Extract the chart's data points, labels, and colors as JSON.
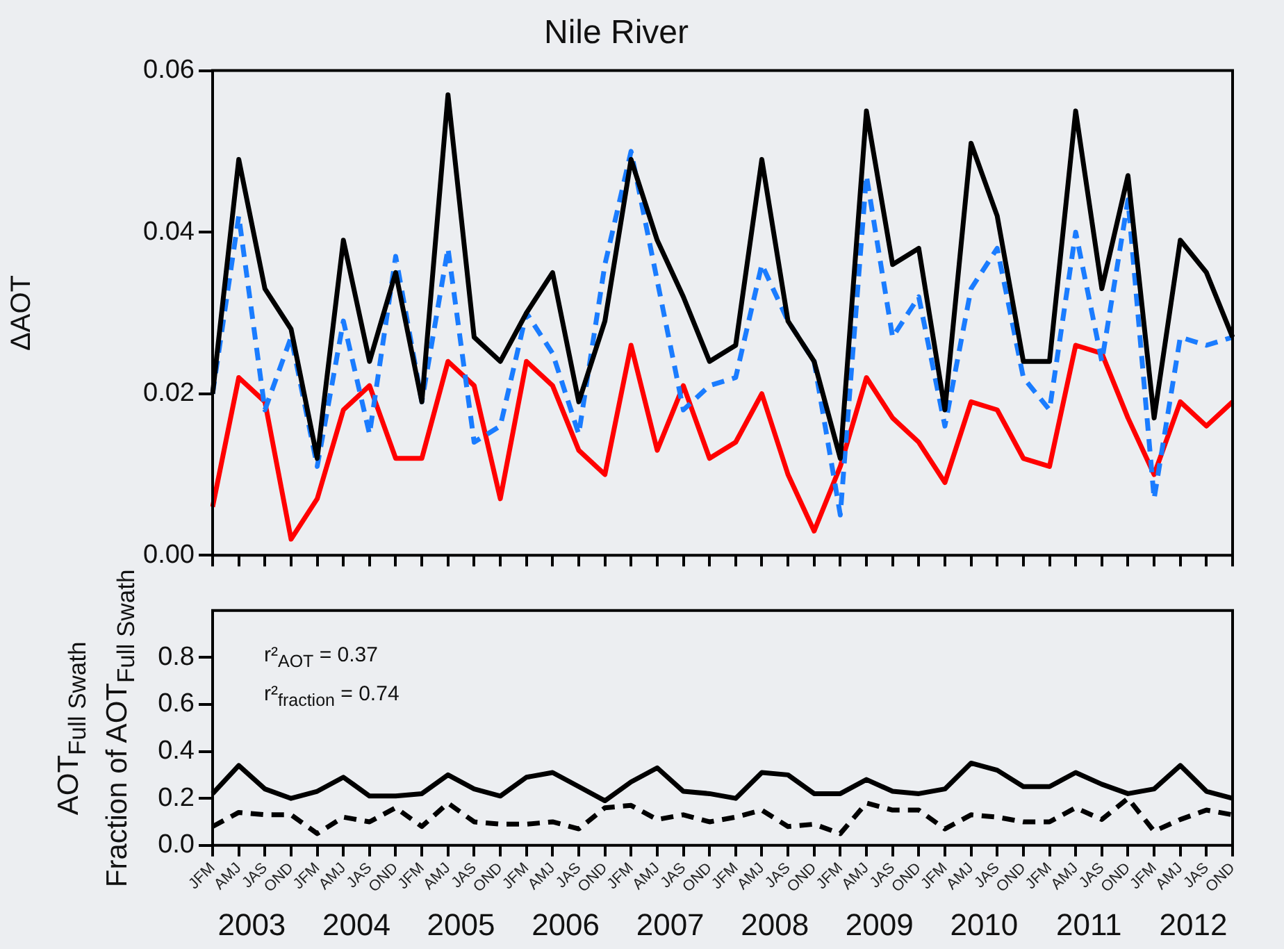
{
  "chart_data": [
    {
      "type": "line",
      "title": "Nile River",
      "ylabel": "ΔAOT",
      "categories": [
        null,
        null,
        null,
        null,
        null,
        null,
        null,
        null,
        null,
        null,
        null,
        null,
        null,
        null,
        null,
        null,
        null,
        null,
        null,
        null,
        null,
        null,
        null,
        null,
        null,
        null,
        null,
        null,
        null,
        null,
        null,
        null,
        null,
        null,
        null,
        null,
        null,
        null,
        null,
        null
      ],
      "ylim": [
        0,
        0.06
      ],
      "yticks": [
        {
          "value": 0,
          "label": "0.00"
        },
        {
          "value": 0.02,
          "label": "0.02"
        },
        {
          "value": 0.04,
          "label": "0.04"
        },
        {
          "value": 0.06,
          "label": "0.06"
        }
      ],
      "series": [
        {
          "color": "#000000",
          "line_style": "solid",
          "values": [
            0.02,
            0.049,
            0.033,
            0.028,
            0.012,
            0.039,
            0.024,
            0.035,
            0.019,
            0.057,
            0.027,
            0.024,
            0.03,
            0.035,
            0.019,
            0.029,
            0.049,
            0.039,
            0.032,
            0.024,
            0.026,
            0.049,
            0.029,
            0.024,
            0.012,
            0.055,
            0.036,
            0.038,
            0.018,
            0.051,
            0.042,
            0.024,
            0.024,
            0.055,
            0.033,
            0.047,
            0.017,
            0.039,
            0.035,
            0.027
          ]
        },
        {
          "color": "#1a7cff",
          "line_style": "dashed",
          "values": [
            0.02,
            0.042,
            0.018,
            0.027,
            0.011,
            0.029,
            0.015,
            0.037,
            0.019,
            0.038,
            0.014,
            0.016,
            0.03,
            0.025,
            0.015,
            0.036,
            0.05,
            0.034,
            0.018,
            0.021,
            0.022,
            0.036,
            0.029,
            0.024,
            0.005,
            0.047,
            0.027,
            0.032,
            0.016,
            0.033,
            0.038,
            0.022,
            0.018,
            0.04,
            0.024,
            0.044,
            0.007,
            0.027,
            0.026,
            0.027
          ]
        },
        {
          "color": "#ff0000",
          "line_style": "solid",
          "values": [
            0.006,
            0.022,
            0.019,
            0.002,
            0.007,
            0.018,
            0.021,
            0.012,
            0.012,
            0.024,
            0.021,
            0.007,
            0.024,
            0.021,
            0.013,
            0.01,
            0.026,
            0.013,
            0.021,
            0.012,
            0.014,
            0.02,
            0.01,
            0.003,
            0.011,
            0.022,
            0.017,
            0.014,
            0.009,
            0.019,
            0.018,
            0.012,
            0.011,
            0.026,
            0.025,
            0.017,
            0.01,
            0.019,
            0.016,
            0.019
          ]
        }
      ]
    },
    {
      "type": "line",
      "ylabel": "AOT$_{Full Swath}$\nFraction of AOT$_{Full Swath}$",
      "categories": [
        "JFM",
        "AMJ",
        "JAS",
        "OND",
        "JFM",
        "AMJ",
        "JAS",
        "OND",
        "JFM",
        "AMJ",
        "JAS",
        "OND",
        "JFM",
        "AMJ",
        "JAS",
        "OND",
        "JFM",
        "AMJ",
        "JAS",
        "OND",
        "JFM",
        "AMJ",
        "JAS",
        "OND",
        "JFM",
        "AMJ",
        "JAS",
        "OND",
        "JFM",
        "AMJ",
        "JAS",
        "OND",
        "JFM",
        "AMJ",
        "JAS",
        "OND",
        "JFM",
        "AMJ",
        "JAS",
        "OND"
      ],
      "ylim": [
        0,
        1
      ],
      "yticks": [
        {
          "value": 0,
          "label": "0.0"
        },
        {
          "value": 0.2,
          "label": "0.2"
        },
        {
          "value": 0.4,
          "label": "0.4"
        },
        {
          "value": 0.6,
          "label": "0.6"
        },
        {
          "value": 0.8,
          "label": "0.8"
        }
      ],
      "annotations": [
        "r²$_{AOT}$ =  0.37",
        "r²$_{fraction}$ =  0.74",
        "2003",
        "2004",
        "2005",
        "2006",
        "2007",
        "2008",
        "2009",
        "2010",
        "2011",
        "2012"
      ],
      "series": [
        {
          "color": "#000000",
          "line_style": "solid",
          "values": [
            0.22,
            0.34,
            0.24,
            0.2,
            0.23,
            0.29,
            0.21,
            0.21,
            0.22,
            0.3,
            0.24,
            0.21,
            0.29,
            0.31,
            0.25,
            0.19,
            0.27,
            0.33,
            0.23,
            0.22,
            0.2,
            0.31,
            0.3,
            0.22,
            0.22,
            0.28,
            0.23,
            0.22,
            0.24,
            0.35,
            0.32,
            0.25,
            0.25,
            0.31,
            0.26,
            0.22,
            0.24,
            0.34,
            0.23,
            0.2
          ]
        },
        {
          "color": "#000000",
          "line_style": "dashed",
          "values": [
            0.08,
            0.14,
            0.13,
            0.13,
            0.05,
            0.12,
            0.1,
            0.16,
            0.08,
            0.18,
            0.1,
            0.09,
            0.09,
            0.1,
            0.07,
            0.16,
            0.17,
            0.11,
            0.13,
            0.1,
            0.12,
            0.15,
            0.08,
            0.09,
            0.05,
            0.18,
            0.15,
            0.15,
            0.07,
            0.13,
            0.12,
            0.1,
            0.1,
            0.16,
            0.11,
            0.2,
            0.06,
            0.11,
            0.15,
            0.13
          ]
        }
      ]
    }
  ]
}
